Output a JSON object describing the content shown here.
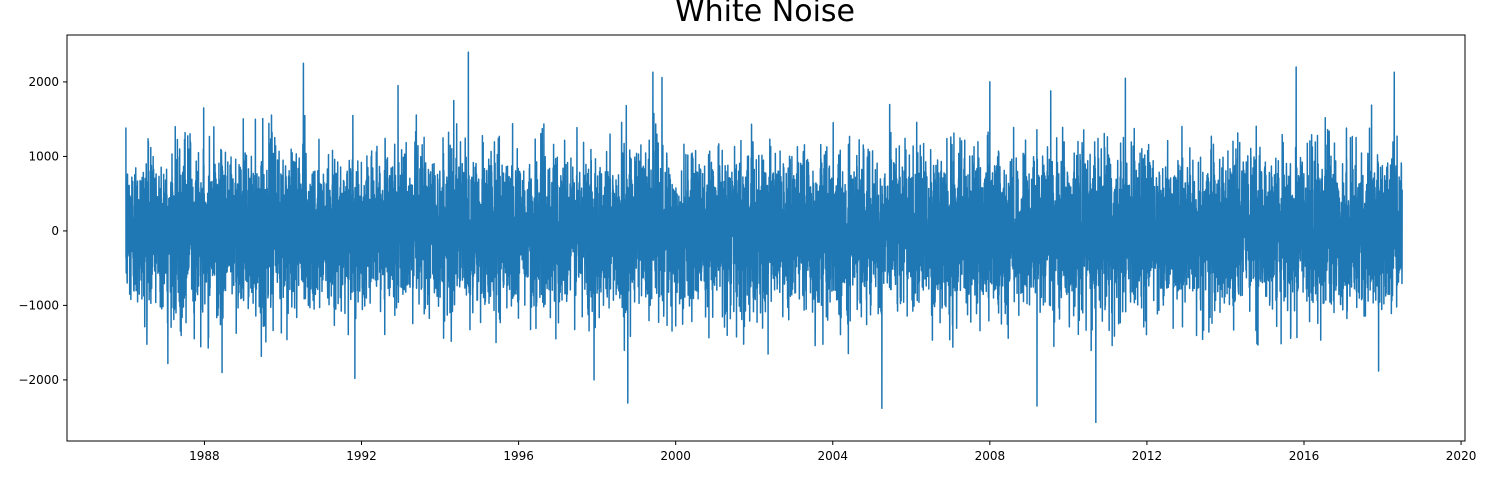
{
  "chart_data": {
    "type": "line",
    "title": "White Noise",
    "xlabel": "",
    "ylabel": "",
    "x_ticks": [
      "1988",
      "1992",
      "1996",
      "2000",
      "2004",
      "2008",
      "2012",
      "2016",
      "2020"
    ],
    "y_ticks": [
      "2000",
      "1000",
      "0",
      "−1000",
      "−2000"
    ],
    "xlim": [
      1984.5,
      2020.1
    ],
    "ylim": [
      -2820,
      2630
    ],
    "x_range_data": [
      1986.0,
      2018.5
    ],
    "grid": false,
    "legend": "none",
    "series_color": "#1f77b4",
    "series": [
      {
        "notable_points": [
          {
            "x": 1986.06,
            "y": 600
          },
          {
            "x": 1986.2,
            "y": -800
          },
          {
            "x": 1987.07,
            "y": -1780
          },
          {
            "x": 1987.98,
            "y": 1650
          },
          {
            "x": 1988.45,
            "y": -1900
          },
          {
            "x": 1990.52,
            "y": 2250
          },
          {
            "x": 1991.83,
            "y": -1980
          },
          {
            "x": 1992.93,
            "y": 1950
          },
          {
            "x": 1994.35,
            "y": 1750
          },
          {
            "x": 1994.72,
            "y": 2400
          },
          {
            "x": 1997.92,
            "y": -2000
          },
          {
            "x": 1998.78,
            "y": -2310
          },
          {
            "x": 1999.42,
            "y": 2130
          },
          {
            "x": 1999.65,
            "y": 2060
          },
          {
            "x": 2005.25,
            "y": -2380
          },
          {
            "x": 2008.0,
            "y": 2000
          },
          {
            "x": 2009.2,
            "y": -2350
          },
          {
            "x": 2009.55,
            "y": 1880
          },
          {
            "x": 2010.7,
            "y": -2570
          },
          {
            "x": 2011.45,
            "y": 2050
          },
          {
            "x": 2015.8,
            "y": 2200
          },
          {
            "x": 2017.9,
            "y": -1880
          },
          {
            "x": 2018.3,
            "y": 2130
          }
        ],
        "noise_std": 500,
        "n_points": 11800
      }
    ]
  }
}
